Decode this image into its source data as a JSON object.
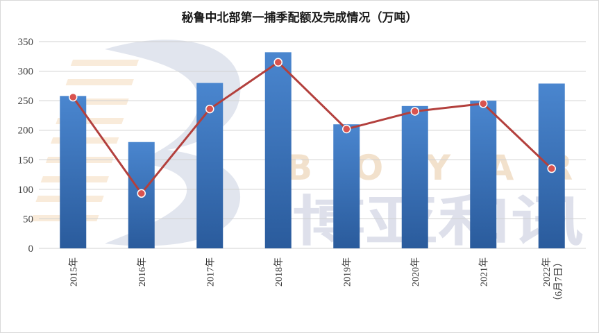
{
  "chart_data": {
    "type": "bar",
    "title": "秘鲁中北部第一捕季配额及完成情况（万吨）",
    "categories": [
      "2015年",
      "2016年",
      "2017年",
      "2018年",
      "2019年",
      "2020年",
      "2021年",
      "2022年（6月7日）"
    ],
    "series": [
      {
        "kind": "bar",
        "values": [
          258,
          180,
          280,
          332,
          210,
          241,
          250,
          279
        ]
      },
      {
        "kind": "line",
        "values": [
          256,
          93,
          236,
          315,
          202,
          232,
          245,
          135
        ]
      }
    ],
    "ylim": [
      0,
      350
    ],
    "yticks": [
      0,
      50,
      100,
      150,
      200,
      250,
      300,
      350
    ],
    "xlabel": "",
    "ylabel": "",
    "grid": true,
    "colors": {
      "bar_top": "#4a86cf",
      "bar_bottom": "#2a5b9c",
      "line": "#b3403d",
      "marker_fill": "#d9534f",
      "marker_stroke": "#ffffff",
      "grid": "#d0d0d0"
    }
  },
  "watermark": {
    "letters": [
      "B",
      "O",
      "Y",
      "A",
      "R"
    ],
    "chinese": "博亚和讯"
  }
}
